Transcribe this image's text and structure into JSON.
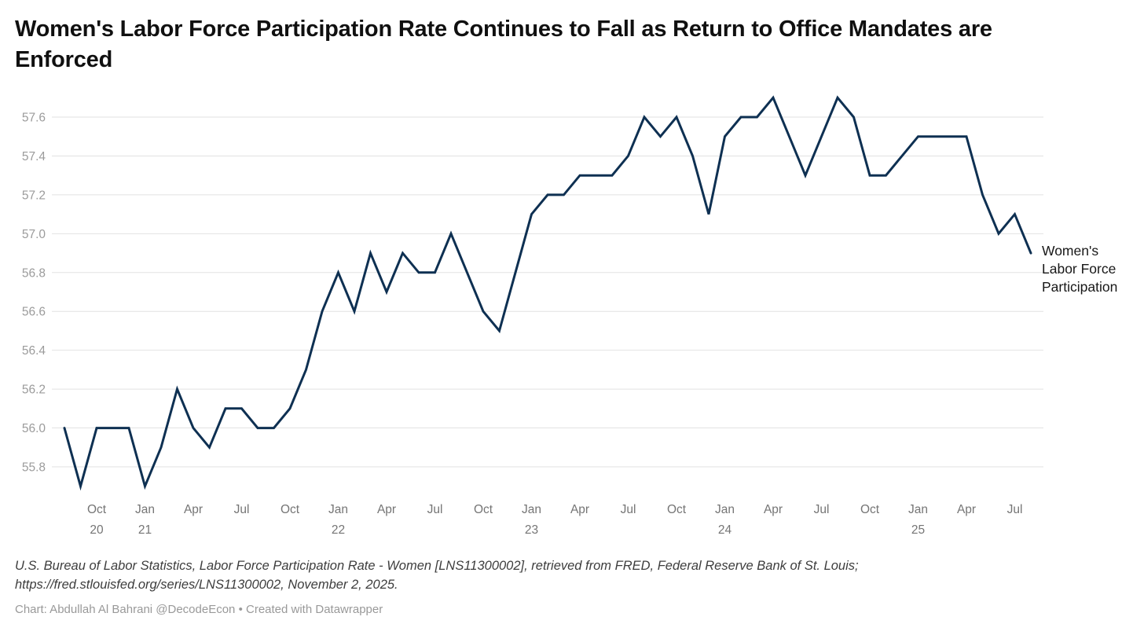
{
  "title": "Women's Labor Force Participation Rate Continues to Fall as Return to Office Mandates are Enforced",
  "series_label": "Women's Labor Force Participation",
  "source_text": "U.S. Bureau of Labor Statistics, Labor Force Participation Rate - Women [LNS11300002], retrieved from FRED, Federal Reserve Bank of St. Louis; https://fred.stlouisfed.org/series/LNS11300002, November 2, 2025.",
  "byline": "Chart: Abdullah Al Bahrani @DecodeEcon • Created with Datawrapper",
  "colors": {
    "line": "#0e3052",
    "grid": "#e2e2e2",
    "y_tick_text": "#9b9b9b",
    "x_tick_text": "#757575",
    "title": "#101010",
    "source": "#3d3d3d",
    "byline": "#999999",
    "end_label": "#181818"
  },
  "chart_data": {
    "type": "line",
    "title": "Women's Labor Force Participation Rate Continues to Fall as Return to Office Mandates are Enforced",
    "xlabel": "",
    "ylabel": "",
    "legend": [
      {
        "name": "Women's Labor Force Participation",
        "position": "right-of-line-end"
      }
    ],
    "grid": "horizontal",
    "ylim": [
      55.65,
      57.77
    ],
    "yticks": [
      55.8,
      56.0,
      56.2,
      56.4,
      56.6,
      56.8,
      57.0,
      57.2,
      57.4,
      57.6
    ],
    "x": [
      "Aug 2020",
      "Sep 2020",
      "Oct 2020",
      "Nov 2020",
      "Dec 2020",
      "Jan 2021",
      "Feb 2021",
      "Mar 2021",
      "Apr 2021",
      "May 2021",
      "Jun 2021",
      "Jul 2021",
      "Aug 2021",
      "Sep 2021",
      "Oct 2021",
      "Nov 2021",
      "Dec 2021",
      "Jan 2022",
      "Feb 2022",
      "Mar 2022",
      "Apr 2022",
      "May 2022",
      "Jun 2022",
      "Jul 2022",
      "Aug 2022",
      "Sep 2022",
      "Oct 2022",
      "Nov 2022",
      "Dec 2022",
      "Jan 2023",
      "Feb 2023",
      "Mar 2023",
      "Apr 2023",
      "May 2023",
      "Jun 2023",
      "Jul 2023",
      "Aug 2023",
      "Sep 2023",
      "Oct 2023",
      "Nov 2023",
      "Dec 2023",
      "Jan 2024",
      "Feb 2024",
      "Mar 2024",
      "Apr 2024",
      "May 2024",
      "Jun 2024",
      "Jul 2024",
      "Aug 2024",
      "Sep 2024",
      "Oct 2024",
      "Nov 2024",
      "Dec 2024",
      "Jan 2025",
      "Feb 2025",
      "Mar 2025",
      "Apr 2025",
      "May 2025",
      "Jun 2025",
      "Jul 2025",
      "Aug 2025"
    ],
    "values": [
      56.0,
      55.7,
      56.0,
      56.0,
      56.0,
      55.7,
      55.9,
      56.2,
      56.0,
      55.9,
      56.1,
      56.1,
      56.0,
      56.0,
      56.1,
      56.3,
      56.6,
      56.8,
      56.6,
      56.9,
      56.7,
      56.9,
      56.8,
      56.8,
      57.0,
      56.8,
      56.6,
      56.5,
      56.8,
      57.1,
      57.2,
      57.2,
      57.3,
      57.3,
      57.3,
      57.4,
      57.6,
      57.5,
      57.6,
      57.4,
      57.1,
      57.5,
      57.6,
      57.6,
      57.7,
      57.5,
      57.3,
      57.5,
      57.7,
      57.6,
      57.3,
      57.3,
      57.4,
      57.5,
      57.5,
      57.5,
      57.5,
      57.2,
      57.0,
      57.1,
      56.9
    ],
    "xticks": [
      {
        "index": 2,
        "label": "Oct",
        "sub": "20"
      },
      {
        "index": 5,
        "label": "Jan",
        "sub": "21"
      },
      {
        "index": 8,
        "label": "Apr",
        "sub": ""
      },
      {
        "index": 11,
        "label": "Jul",
        "sub": ""
      },
      {
        "index": 14,
        "label": "Oct",
        "sub": ""
      },
      {
        "index": 17,
        "label": "Jan",
        "sub": "22"
      },
      {
        "index": 20,
        "label": "Apr",
        "sub": ""
      },
      {
        "index": 23,
        "label": "Jul",
        "sub": ""
      },
      {
        "index": 26,
        "label": "Oct",
        "sub": ""
      },
      {
        "index": 29,
        "label": "Jan",
        "sub": "23"
      },
      {
        "index": 32,
        "label": "Apr",
        "sub": ""
      },
      {
        "index": 35,
        "label": "Jul",
        "sub": ""
      },
      {
        "index": 38,
        "label": "Oct",
        "sub": ""
      },
      {
        "index": 41,
        "label": "Jan",
        "sub": "24"
      },
      {
        "index": 44,
        "label": "Apr",
        "sub": ""
      },
      {
        "index": 47,
        "label": "Jul",
        "sub": ""
      },
      {
        "index": 50,
        "label": "Oct",
        "sub": ""
      },
      {
        "index": 53,
        "label": "Jan",
        "sub": "25"
      },
      {
        "index": 56,
        "label": "Apr",
        "sub": ""
      },
      {
        "index": 59,
        "label": "Jul",
        "sub": ""
      }
    ]
  }
}
